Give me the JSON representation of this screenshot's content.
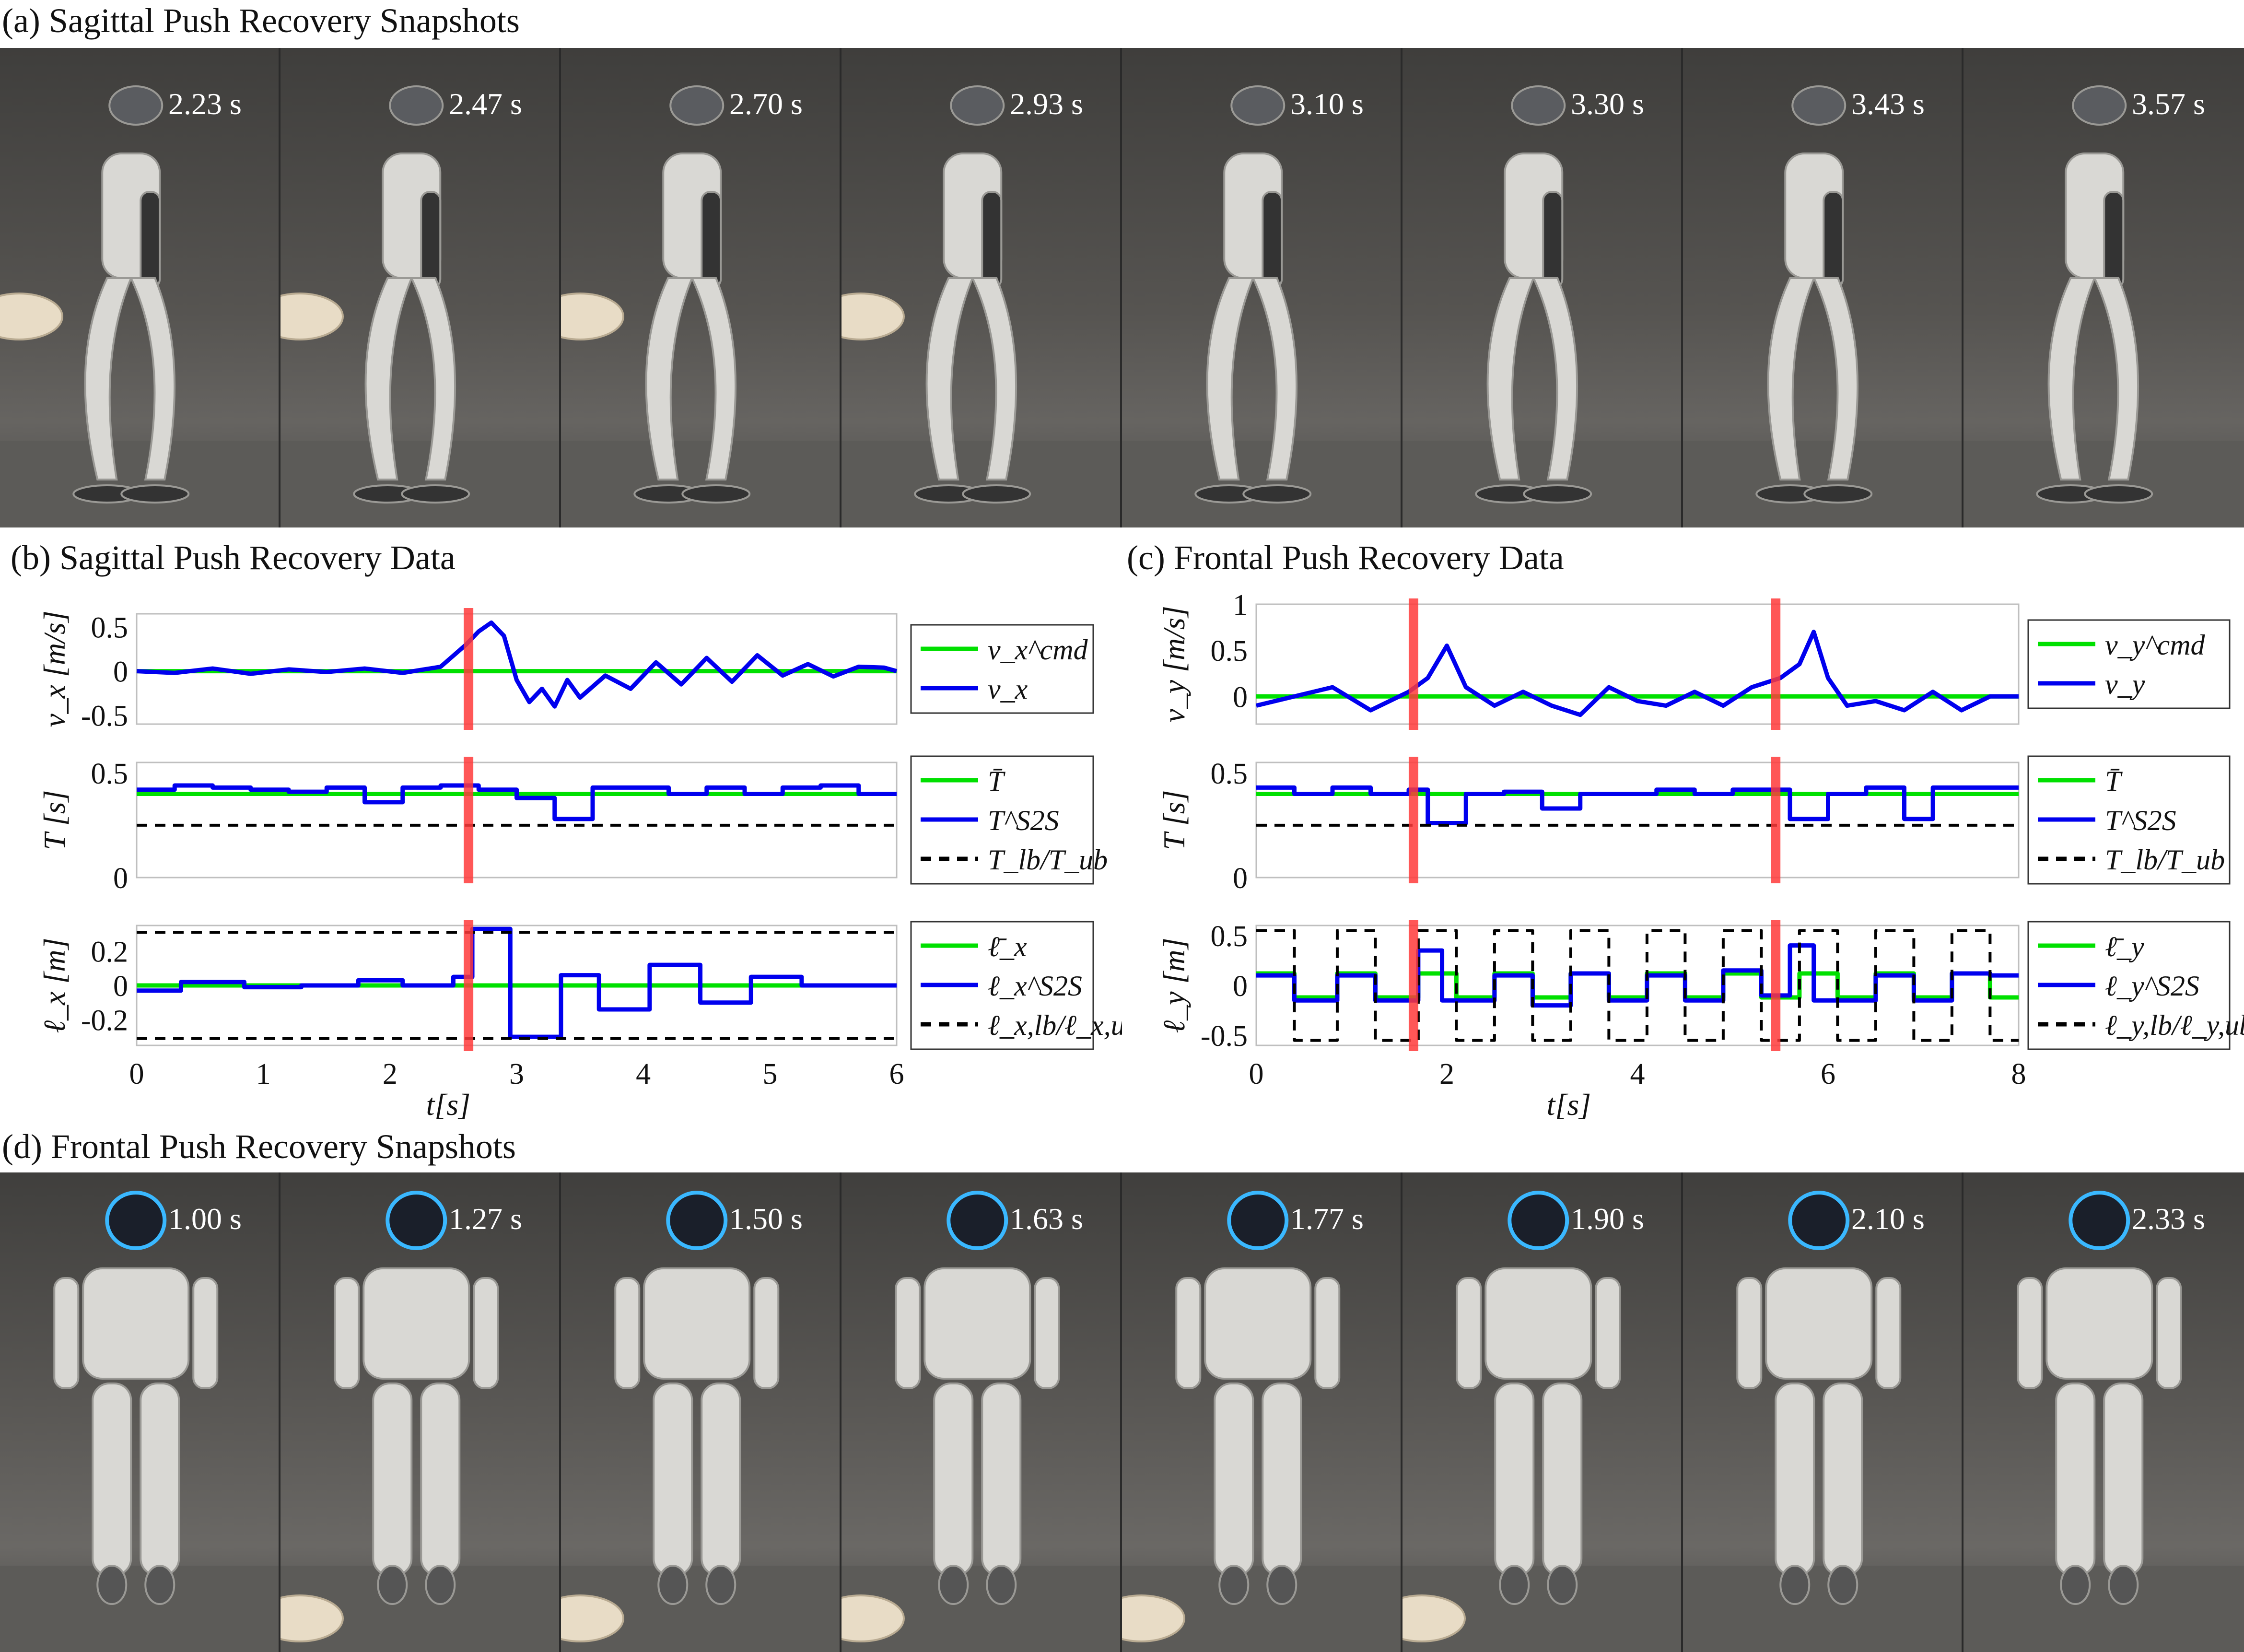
{
  "panels": {
    "a": {
      "title": "(a) Sagittal Push Recovery Snapshots",
      "timestamps": [
        "2.23 s",
        "2.47 s",
        "2.70 s",
        "2.93 s",
        "3.10 s",
        "3.30 s",
        "3.43 s",
        "3.57 s"
      ],
      "hand_frames": [
        0,
        1,
        2,
        3
      ]
    },
    "b": {
      "title": "(b) Sagittal Push Recovery Data"
    },
    "c": {
      "title": "(c) Frontal Push Recovery Data"
    },
    "d": {
      "title": "(d) Frontal Push Recovery Snapshots",
      "timestamps": [
        "1.00 s",
        "1.27 s",
        "1.50 s",
        "1.63 s",
        "1.77 s",
        "1.90 s",
        "2.10 s",
        "2.33 s"
      ],
      "hand_frames": [
        1,
        2,
        3,
        4,
        5
      ]
    }
  },
  "colors": {
    "green": "#00e000",
    "blue": "#0000ee",
    "red": "#ff3a3a",
    "black": "#000000"
  },
  "chart_data": [
    {
      "id": "b",
      "type": "line",
      "xlabel": "t[s]",
      "xlim": [
        0,
        6
      ],
      "xticks": [
        "0",
        "1",
        "2",
        "3",
        "4",
        "5",
        "6"
      ],
      "push_time": 2.62,
      "subplots": [
        {
          "ylabel": "v_x [m/s]",
          "ylim": [
            -0.6,
            0.65
          ],
          "yticks": [
            0.5,
            0,
            -0.5
          ],
          "ytick_labels": [
            "0.5",
            "0",
            "-0.5"
          ],
          "legend": [
            "v_x^cmd",
            "v_x"
          ],
          "series": [
            {
              "name": "v_x^cmd",
              "color": "green",
              "x": [
                0,
                6
              ],
              "y": [
                0,
                0
              ]
            },
            {
              "name": "v_x",
              "color": "blue",
              "x": [
                0,
                0.3,
                0.6,
                0.9,
                1.2,
                1.5,
                1.8,
                2.1,
                2.4,
                2.6,
                2.7,
                2.8,
                2.9,
                3.0,
                3.1,
                3.2,
                3.3,
                3.4,
                3.5,
                3.7,
                3.9,
                4.1,
                4.3,
                4.5,
                4.7,
                4.9,
                5.1,
                5.3,
                5.5,
                5.7,
                5.9,
                6.0
              ],
              "y": [
                0.0,
                -0.02,
                0.03,
                -0.03,
                0.02,
                -0.01,
                0.03,
                -0.02,
                0.05,
                0.3,
                0.45,
                0.55,
                0.4,
                -0.1,
                -0.35,
                -0.2,
                -0.4,
                -0.1,
                -0.3,
                -0.05,
                -0.2,
                0.1,
                -0.15,
                0.15,
                -0.12,
                0.18,
                -0.05,
                0.08,
                -0.06,
                0.05,
                0.04,
                0.0
              ]
            }
          ]
        },
        {
          "ylabel": "T [s]",
          "ylim": [
            0,
            0.55
          ],
          "yticks": [
            0.5,
            0
          ],
          "ytick_labels": [
            "0.5",
            "0"
          ],
          "legend": [
            "T̄",
            "T^S2S",
            "T_lb/T_ub"
          ],
          "series": [
            {
              "name": "T̄",
              "color": "green",
              "x": [
                0,
                6
              ],
              "y": [
                0.4,
                0.4
              ]
            },
            {
              "name": "T^S2S",
              "color": "blue",
              "step": true,
              "x": [
                0,
                0.3,
                0.6,
                0.9,
                1.2,
                1.5,
                1.8,
                2.1,
                2.4,
                2.7,
                3.0,
                3.3,
                3.6,
                3.9,
                4.2,
                4.5,
                4.8,
                5.1,
                5.4,
                5.7,
                6.0
              ],
              "y": [
                0.42,
                0.44,
                0.43,
                0.42,
                0.41,
                0.43,
                0.36,
                0.43,
                0.44,
                0.42,
                0.38,
                0.28,
                0.43,
                0.43,
                0.4,
                0.43,
                0.4,
                0.43,
                0.44,
                0.4,
                0.4
              ]
            },
            {
              "name": "T_lb/T_ub",
              "color": "black",
              "dashed": true,
              "x": [
                0,
                6
              ],
              "y": [
                0.25,
                0.25
              ]
            }
          ]
        },
        {
          "ylabel": "ℓ_x [m]",
          "ylim": [
            -0.35,
            0.35
          ],
          "yticks": [
            0.2,
            0,
            -0.2
          ],
          "ytick_labels": [
            "0.2",
            "0",
            "-0.2"
          ],
          "legend": [
            "ℓ̄_x",
            "ℓ_x^S2S",
            "ℓ_x,lb/ℓ_x,ub"
          ],
          "series": [
            {
              "name": "ℓ̄_x",
              "color": "green",
              "x": [
                0,
                6
              ],
              "y": [
                0,
                0
              ]
            },
            {
              "name": "ℓ_x^S2S",
              "color": "blue",
              "step": true,
              "x": [
                0,
                0.35,
                0.85,
                1.3,
                1.75,
                2.1,
                2.5,
                2.65,
                2.95,
                3.35,
                3.65,
                4.05,
                4.45,
                4.85,
                5.25,
                6.0
              ],
              "y": [
                -0.03,
                0.02,
                -0.01,
                0.0,
                0.03,
                0.0,
                0.05,
                0.33,
                -0.3,
                0.06,
                -0.14,
                0.12,
                -0.1,
                0.05,
                0.0,
                0.0
              ]
            },
            {
              "name": "ℓ_x,ub",
              "color": "black",
              "dashed": true,
              "x": [
                0,
                6
              ],
              "y": [
                0.31,
                0.31
              ]
            },
            {
              "name": "ℓ_x,lb",
              "color": "black",
              "dashed": true,
              "x": [
                0,
                6
              ],
              "y": [
                -0.31,
                -0.31
              ]
            }
          ]
        }
      ]
    },
    {
      "id": "c",
      "type": "line",
      "xlabel": "t[s]",
      "xlim": [
        0,
        8
      ],
      "xticks": [
        "0",
        "2",
        "4",
        "6",
        "8"
      ],
      "push_time": [
        1.65,
        5.45
      ],
      "subplots": [
        {
          "ylabel": "v_y [m/s]",
          "ylim": [
            -0.3,
            1.0
          ],
          "yticks": [
            1,
            0.5,
            0
          ],
          "ytick_labels": [
            "1",
            "0.5",
            "0"
          ],
          "legend": [
            "v_y^cmd",
            "v_y"
          ],
          "series": [
            {
              "name": "v_y^cmd",
              "color": "green",
              "x": [
                0,
                8
              ],
              "y": [
                0,
                0
              ]
            },
            {
              "name": "v_y",
              "color": "blue",
              "x": [
                0,
                0.4,
                0.8,
                1.2,
                1.6,
                1.8,
                2.0,
                2.2,
                2.5,
                2.8,
                3.1,
                3.4,
                3.7,
                4.0,
                4.3,
                4.6,
                4.9,
                5.2,
                5.5,
                5.7,
                5.85,
                6.0,
                6.2,
                6.5,
                6.8,
                7.1,
                7.4,
                7.7,
                8.0
              ],
              "y": [
                -0.1,
                0.0,
                0.1,
                -0.15,
                0.05,
                0.2,
                0.55,
                0.1,
                -0.1,
                0.05,
                -0.1,
                -0.2,
                0.1,
                -0.05,
                -0.1,
                0.05,
                -0.1,
                0.1,
                0.2,
                0.35,
                0.7,
                0.2,
                -0.1,
                -0.05,
                -0.15,
                0.05,
                -0.15,
                0.0,
                0.0
              ]
            }
          ]
        },
        {
          "ylabel": "T [s]",
          "ylim": [
            0,
            0.55
          ],
          "yticks": [
            0.5,
            0
          ],
          "ytick_labels": [
            "0.5",
            "0"
          ],
          "legend": [
            "T̄",
            "T^S2S",
            "T_lb/T_ub"
          ],
          "series": [
            {
              "name": "T̄",
              "color": "green",
              "x": [
                0,
                8
              ],
              "y": [
                0.4,
                0.4
              ]
            },
            {
              "name": "T^S2S",
              "color": "blue",
              "step": true,
              "x": [
                0,
                0.4,
                0.8,
                1.2,
                1.6,
                1.8,
                2.2,
                2.6,
                3.0,
                3.4,
                3.8,
                4.2,
                4.6,
                5.0,
                5.4,
                5.6,
                6.0,
                6.4,
                6.8,
                7.1,
                7.5,
                8.0
              ],
              "y": [
                0.43,
                0.4,
                0.43,
                0.4,
                0.42,
                0.26,
                0.4,
                0.41,
                0.33,
                0.4,
                0.4,
                0.42,
                0.4,
                0.42,
                0.42,
                0.28,
                0.4,
                0.43,
                0.28,
                0.43,
                0.43,
                0.43
              ]
            },
            {
              "name": "T_lb/T_ub",
              "color": "black",
              "dashed": true,
              "x": [
                0,
                8
              ],
              "y": [
                0.25,
                0.25
              ]
            }
          ]
        },
        {
          "ylabel": "ℓ_y [m]",
          "ylim": [
            -0.6,
            0.6
          ],
          "yticks": [
            0.5,
            0,
            -0.5
          ],
          "ytick_labels": [
            "0.5",
            "0",
            "-0.5"
          ],
          "legend": [
            "ℓ̄_y",
            "ℓ_y^S2S",
            "ℓ_y,lb/ℓ_y,ub"
          ],
          "series": [
            {
              "name": "ℓ̄_y",
              "color": "green",
              "step": true,
              "x": [
                0,
                0.4,
                0.85,
                1.25,
                1.7,
                2.1,
                2.5,
                2.9,
                3.3,
                3.7,
                4.1,
                4.5,
                4.9,
                5.3,
                5.7,
                6.1,
                6.5,
                6.9,
                7.3,
                7.7,
                8.0
              ],
              "y": [
                0.12,
                -0.12,
                0.12,
                -0.12,
                0.12,
                -0.12,
                0.12,
                -0.12,
                0.12,
                -0.12,
                0.12,
                -0.12,
                0.12,
                -0.12,
                0.12,
                -0.12,
                0.12,
                -0.12,
                0.12,
                -0.12,
                -0.12
              ]
            },
            {
              "name": "ℓ_y^S2S",
              "color": "blue",
              "step": true,
              "x": [
                0,
                0.4,
                0.85,
                1.25,
                1.7,
                1.95,
                2.5,
                2.9,
                3.3,
                3.7,
                4.1,
                4.5,
                4.9,
                5.3,
                5.6,
                5.85,
                6.5,
                6.9,
                7.3,
                7.7,
                8.0
              ],
              "y": [
                0.1,
                -0.15,
                0.1,
                -0.15,
                0.35,
                -0.15,
                0.1,
                -0.2,
                0.12,
                -0.15,
                0.1,
                -0.15,
                0.15,
                -0.1,
                0.4,
                -0.15,
                0.1,
                -0.15,
                0.12,
                0.1,
                0.1
              ]
            },
            {
              "name": "ℓ_y,lb/ℓ_y,ub",
              "color": "black",
              "dashed": true,
              "step": true,
              "x": [
                0,
                0.4,
                0.85,
                1.25,
                1.7,
                2.1,
                2.5,
                2.9,
                3.3,
                3.7,
                4.1,
                4.5,
                4.9,
                5.3,
                5.7,
                6.1,
                6.5,
                6.9,
                7.3,
                7.7,
                8.0
              ],
              "y": [
                0.55,
                -0.55,
                0.55,
                -0.55,
                0.55,
                -0.55,
                0.55,
                -0.55,
                0.55,
                -0.55,
                0.55,
                -0.55,
                0.55,
                -0.55,
                0.55,
                -0.55,
                0.55,
                -0.55,
                0.55,
                -0.55,
                -0.55
              ]
            }
          ]
        }
      ]
    }
  ]
}
